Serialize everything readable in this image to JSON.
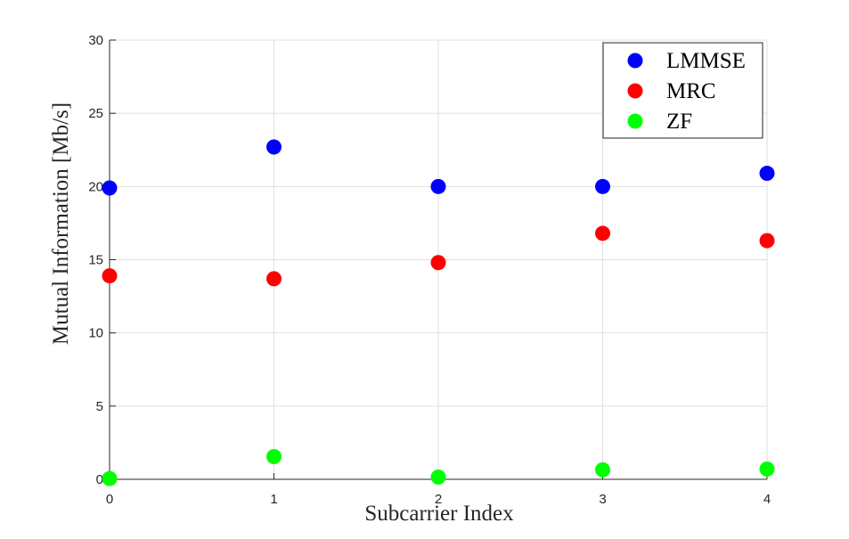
{
  "chart_data": {
    "type": "scatter",
    "xlabel": "Subcarrier Index",
    "ylabel": "Mutual Information [Mb/s]",
    "xlim": [
      0,
      4
    ],
    "ylim": [
      0,
      30
    ],
    "x_ticks": [
      0,
      1,
      2,
      3,
      4
    ],
    "y_ticks": [
      0,
      5,
      10,
      15,
      20,
      25,
      30
    ],
    "grid": true,
    "legend_position": "top-right",
    "x": [
      0,
      1,
      2,
      3,
      4
    ],
    "series": [
      {
        "name": "LMMSE",
        "color": "#0000ff",
        "values": [
          19.9,
          22.7,
          20.0,
          20.0,
          20.9
        ]
      },
      {
        "name": "MRC",
        "color": "#ff0000",
        "values": [
          13.9,
          13.7,
          14.8,
          16.8,
          16.3
        ]
      },
      {
        "name": "ZF",
        "color": "#00ff00",
        "values": [
          0.05,
          1.55,
          0.15,
          0.65,
          0.7
        ]
      }
    ]
  }
}
